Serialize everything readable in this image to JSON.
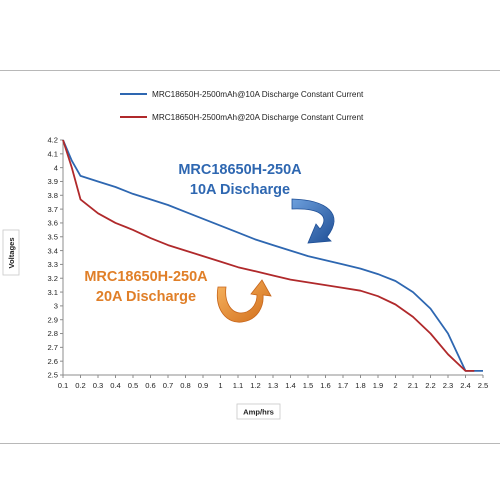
{
  "chart_data": {
    "type": "line",
    "title": "",
    "xlabel": "Amp/hrs",
    "ylabel": "Voltages",
    "xlim": [
      0.1,
      2.5
    ],
    "ylim": [
      2.5,
      4.2
    ],
    "x_ticks": [
      "0.1",
      "0.2",
      "0.3",
      "0.4",
      "0.5",
      "0.6",
      "0.7",
      "0.8",
      "0.9",
      "1",
      "1.1",
      "1.2",
      "1.3",
      "1.4",
      "1.5",
      "1.6",
      "1.7",
      "1.8",
      "1.9",
      "2",
      "2.1",
      "2.2",
      "2.3",
      "2.4",
      "2.5"
    ],
    "y_ticks": [
      "2.5",
      "2.6",
      "2.7",
      "2.8",
      "2.9",
      "3",
      "3.1",
      "3.2",
      "3.3",
      "3.4",
      "3.5",
      "3.6",
      "3.7",
      "3.8",
      "3.9",
      "4",
      "4.1",
      "4.2"
    ],
    "grid": false,
    "legend_position": "top",
    "series": [
      {
        "name": "MRC18650H-2500mAh@10A Discharge Constant Current",
        "color": "#2e67b1",
        "x": [
          0.1,
          0.15,
          0.2,
          0.3,
          0.4,
          0.5,
          0.6,
          0.7,
          0.8,
          0.9,
          1.0,
          1.1,
          1.2,
          1.3,
          1.4,
          1.5,
          1.6,
          1.7,
          1.8,
          1.9,
          2.0,
          2.1,
          2.2,
          2.3,
          2.4,
          2.5
        ],
        "y": [
          4.2,
          4.05,
          3.94,
          3.9,
          3.86,
          3.81,
          3.77,
          3.73,
          3.68,
          3.63,
          3.58,
          3.53,
          3.48,
          3.44,
          3.4,
          3.36,
          3.33,
          3.3,
          3.27,
          3.23,
          3.18,
          3.1,
          2.98,
          2.8,
          2.53,
          2.53
        ]
      },
      {
        "name": "MRC18650H-2500mAh@20A Discharge Constant Current",
        "color": "#b0292b",
        "x": [
          0.1,
          0.15,
          0.2,
          0.3,
          0.4,
          0.5,
          0.6,
          0.7,
          0.8,
          0.9,
          1.0,
          1.1,
          1.2,
          1.3,
          1.4,
          1.5,
          1.6,
          1.7,
          1.8,
          1.9,
          2.0,
          2.1,
          2.2,
          2.3,
          2.4,
          2.45
        ],
        "y": [
          4.2,
          4.0,
          3.77,
          3.67,
          3.6,
          3.55,
          3.49,
          3.44,
          3.4,
          3.36,
          3.32,
          3.28,
          3.25,
          3.22,
          3.19,
          3.17,
          3.15,
          3.13,
          3.11,
          3.07,
          3.01,
          2.92,
          2.8,
          2.65,
          2.53,
          2.53
        ]
      }
    ],
    "annotations": [
      {
        "line1": "MRC18650H-250A",
        "line2": "10A Discharge",
        "color": "#2e67b1"
      },
      {
        "line1": "MRC18650H-250A",
        "line2": "20A Discharge",
        "color": "#e07f28"
      }
    ]
  }
}
